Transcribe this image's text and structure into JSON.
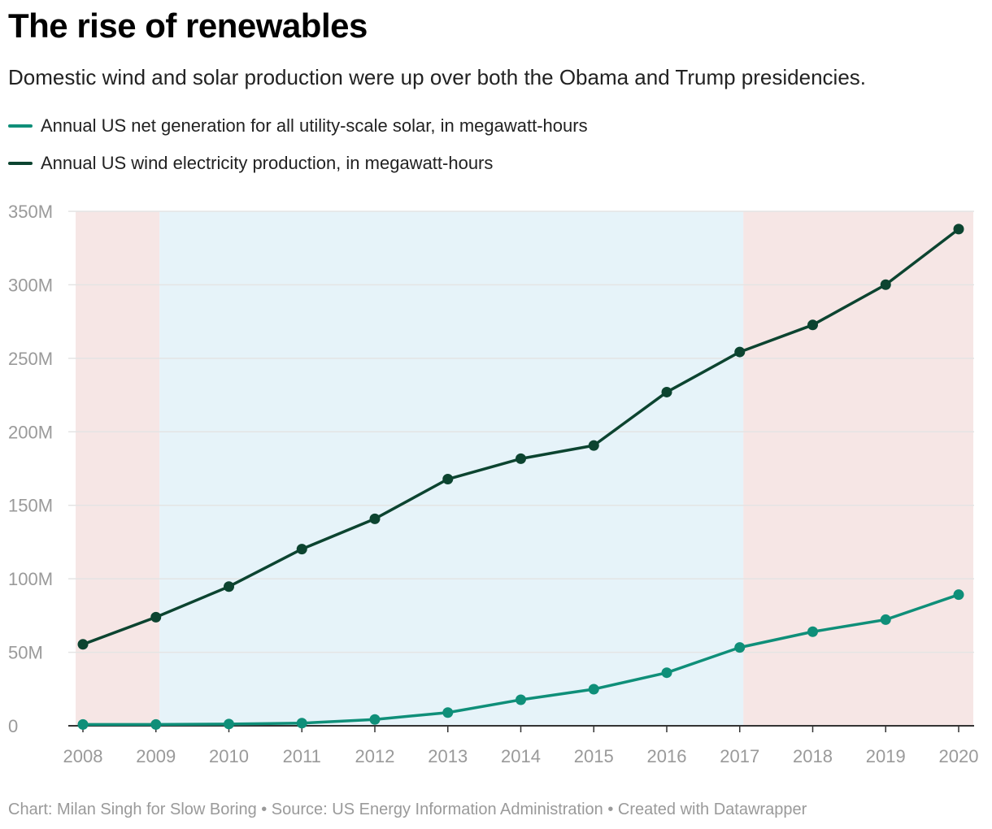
{
  "colors": {
    "solar": "#0f8f79",
    "wind": "#0c4430",
    "gridline": "#e4e4e4",
    "axis": "#333333",
    "tick_text": "#9a9a9a",
    "republican_band": "#f6e6e5",
    "democratic_band": "#e6f3f9"
  },
  "chart_data": {
    "type": "line",
    "title": "The rise of renewables",
    "subtitle": "Domestic wind and solar production were up over both the Obama and Trump presidencies.",
    "xlabel": "",
    "ylabel": "",
    "x": [
      2008,
      2009,
      2010,
      2011,
      2012,
      2013,
      2014,
      2015,
      2016,
      2017,
      2018,
      2019,
      2020
    ],
    "x_tick_labels": [
      "2008",
      "2009",
      "2010",
      "2011",
      "2012",
      "2013",
      "2014",
      "2015",
      "2016",
      "2017",
      "2018",
      "2019",
      "2020"
    ],
    "ylim": [
      0,
      350000000
    ],
    "y_ticks": [
      0,
      50000000,
      100000000,
      150000000,
      200000000,
      250000000,
      300000000,
      350000000
    ],
    "y_tick_labels": [
      "0",
      "50M",
      "100M",
      "150M",
      "200M",
      "250M",
      "300M",
      "350M"
    ],
    "grid": true,
    "legend_position": "top-left",
    "series": [
      {
        "name": "Annual US net generation for all utility-scale solar, in megawatt-hours",
        "color": "#0f8f79",
        "values": [
          900000,
          900000,
          1200000,
          1800000,
          4300000,
          9000000,
          17700000,
          24900000,
          36100000,
          53300000,
          64000000,
          72200000,
          89200000
        ]
      },
      {
        "name": "Annual US wind electricity production, in megawatt-hours",
        "color": "#0c4430",
        "values": [
          55400000,
          73900000,
          94700000,
          120200000,
          140800000,
          167800000,
          181700000,
          190700000,
          227000000,
          254300000,
          272700000,
          300100000,
          337900000
        ]
      }
    ],
    "background_bands": [
      {
        "from": 2007.9,
        "to": 2009.05,
        "color": "#f6e6e5"
      },
      {
        "from": 2009.05,
        "to": 2017.05,
        "color": "#e6f3f9"
      },
      {
        "from": 2017.05,
        "to": 2020.2,
        "color": "#f6e6e5"
      }
    ]
  },
  "footer": "Chart: Milan Singh for Slow Boring • Source: US Energy Information Administration • Created with Datawrapper"
}
